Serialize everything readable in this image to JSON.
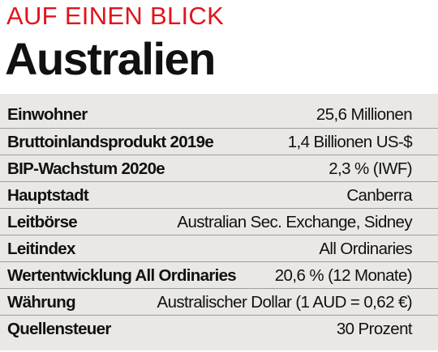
{
  "header": {
    "kicker": "AUF EINEN BLICK",
    "title": "Australien"
  },
  "facts": [
    {
      "label": "Einwohner",
      "value": "25,6 Millionen"
    },
    {
      "label": "Bruttoinlandsprodukt 2019e",
      "value": "1,4 Billionen US-$"
    },
    {
      "label": "BIP-Wachstum 2020e",
      "value": "2,3 % (IWF)"
    },
    {
      "label": "Hauptstadt",
      "value": "Canberra"
    },
    {
      "label": "Leitbörse",
      "value": "Australian Sec. Exchange, Sidney"
    },
    {
      "label": "Leitindex",
      "value": "All Ordinaries"
    },
    {
      "label": "Wertentwicklung All Ordinaries",
      "value": "20,6 % (12 Monate)"
    },
    {
      "label": "Währung",
      "value": "Australischer Dollar (1 AUD = 0,62 €)"
    },
    {
      "label": "Quellensteuer",
      "value": "30 Prozent"
    }
  ],
  "colors": {
    "accent": "#e2141b",
    "table_background": "#e9e8e6",
    "divider": "#9e9e9e"
  }
}
